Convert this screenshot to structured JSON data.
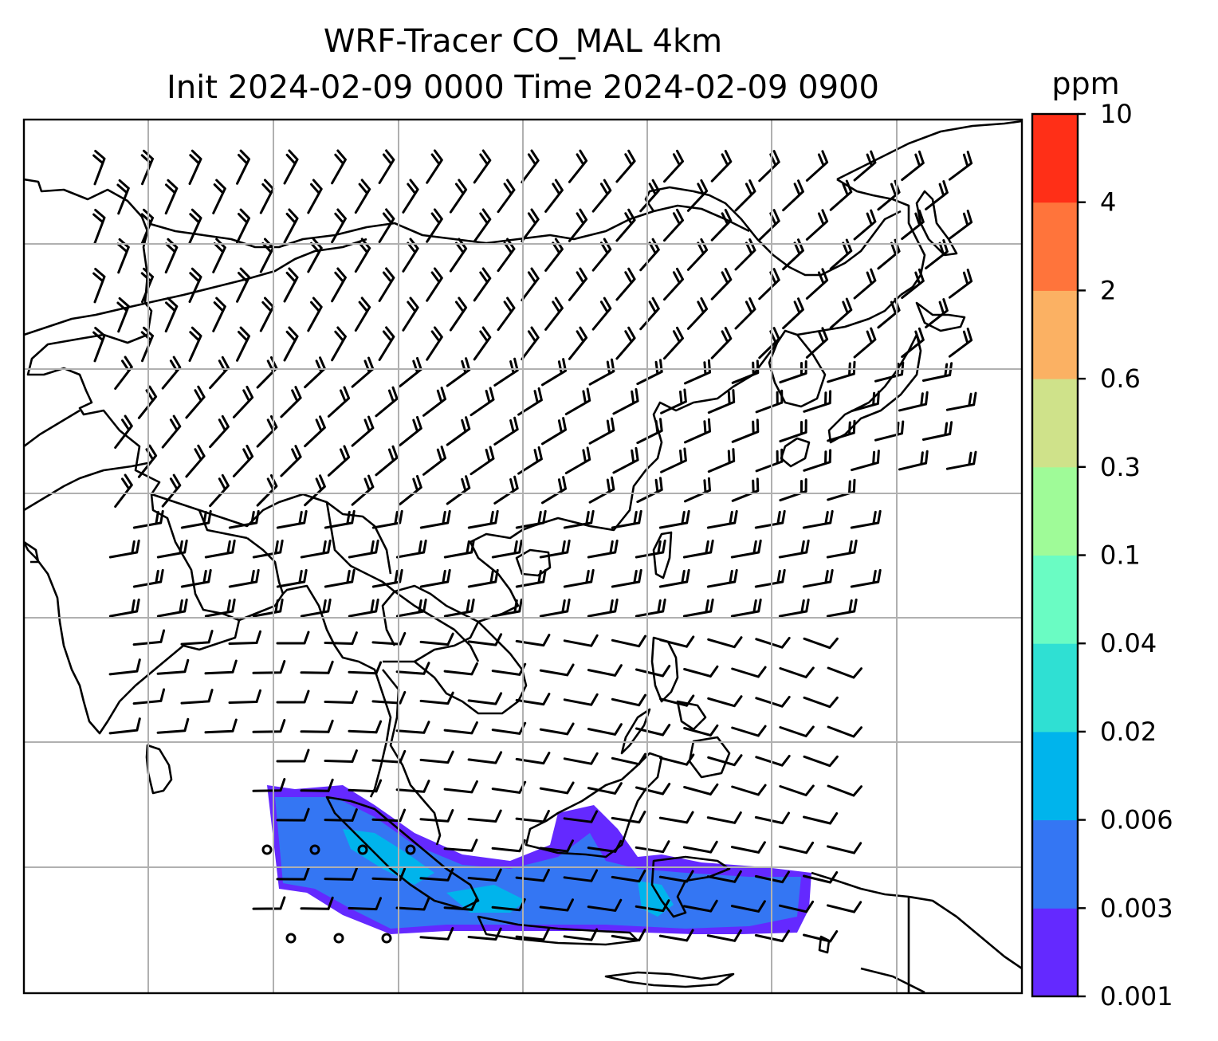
{
  "title": {
    "line1": "WRF-Tracer CO_MAL 4km",
    "line2": "Init 2024-02-09 0000 Time 2024-02-09 0900"
  },
  "colorbar": {
    "unit": "ppm",
    "tick_labels": [
      "0.001",
      "0.003",
      "0.006",
      "0.02",
      "0.04",
      "0.1",
      "0.3",
      "0.6",
      "2",
      "4",
      "10"
    ],
    "colors": [
      "#6429ff",
      "#3476f3",
      "#00b4ec",
      "#2fe0d3",
      "#6afcc3",
      "#9ffb98",
      "#cfe28a",
      "#fbb163",
      "#ff743b",
      "#ff2f17"
    ]
  },
  "map": {
    "gridlines": true,
    "features": [
      "coastlines",
      "country-borders",
      "wind-barbs",
      "tracer-concentration"
    ],
    "plume_levels_ppm": [
      "0.001-0.003",
      "0.003-0.006",
      "0.006-0.02"
    ]
  }
}
